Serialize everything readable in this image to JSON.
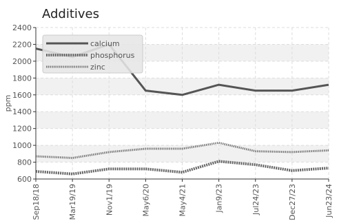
{
  "chart_data": {
    "type": "line",
    "title": "Additives",
    "xlabel": "",
    "ylabel": "ppm",
    "ylim": [
      600,
      2400
    ],
    "yticks": [
      600,
      800,
      1000,
      1200,
      1400,
      1600,
      1800,
      2000,
      2200,
      2400
    ],
    "x": [
      "Sep18/18",
      "Mar19/19",
      "Nov1/19",
      "May6/20",
      "May4/21",
      "Jan9/23",
      "Jul24/23",
      "Dec27/23",
      "Jun23/24"
    ],
    "series": [
      {
        "name": "calcium",
        "values": [
          2150,
          2050,
          2200,
          1650,
          1600,
          1720,
          1650,
          1650,
          1720
        ],
        "color": "#555555",
        "style": "solid"
      },
      {
        "name": "phosphorus",
        "values": [
          690,
          660,
          720,
          720,
          680,
          810,
          770,
          700,
          730
        ],
        "color": "#666666",
        "style": "dotted"
      },
      {
        "name": "zinc",
        "values": [
          870,
          850,
          920,
          960,
          960,
          1030,
          930,
          920,
          940
        ],
        "color": "#777777",
        "style": "dotted-light"
      }
    ],
    "grid": true,
    "legend_position": "top-left",
    "colors": {
      "band": "#f1f1f1",
      "grid": "#dddddd",
      "axis": "#333333",
      "legend_bg": "#e6e6e6"
    }
  }
}
